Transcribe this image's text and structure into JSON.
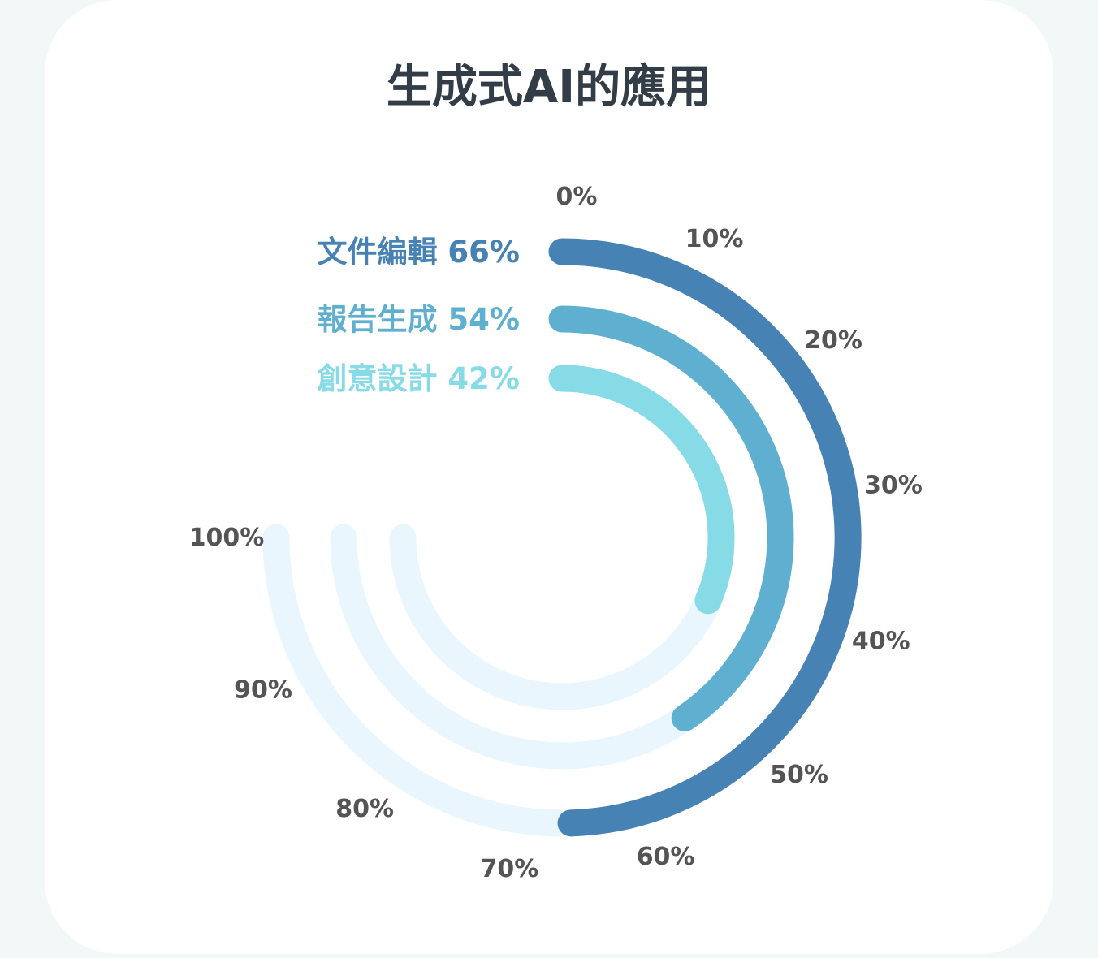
{
  "title": "生成式AI的應用",
  "chart_data": {
    "type": "radial-bar",
    "title": "生成式AI的應用",
    "range": [
      0,
      100
    ],
    "ticks": [
      "0%",
      "10%",
      "20%",
      "30%",
      "40%",
      "50%",
      "60%",
      "70%",
      "80%",
      "90%",
      "100%"
    ],
    "tick_values": [
      0,
      10,
      20,
      30,
      40,
      50,
      60,
      70,
      80,
      90,
      100
    ],
    "series": [
      {
        "name": "文件編輯",
        "value": 66,
        "label": "文件編輯 66%",
        "color": "#4682b4"
      },
      {
        "name": "報告生成",
        "value": 54,
        "label": "報告生成 54%",
        "color": "#5fb0d0"
      },
      {
        "name": "創意設計",
        "value": 42,
        "label": "創意設計 42%",
        "color": "#87dbe6"
      }
    ],
    "track_color": "#eaf6fd",
    "track_extent": 75
  }
}
